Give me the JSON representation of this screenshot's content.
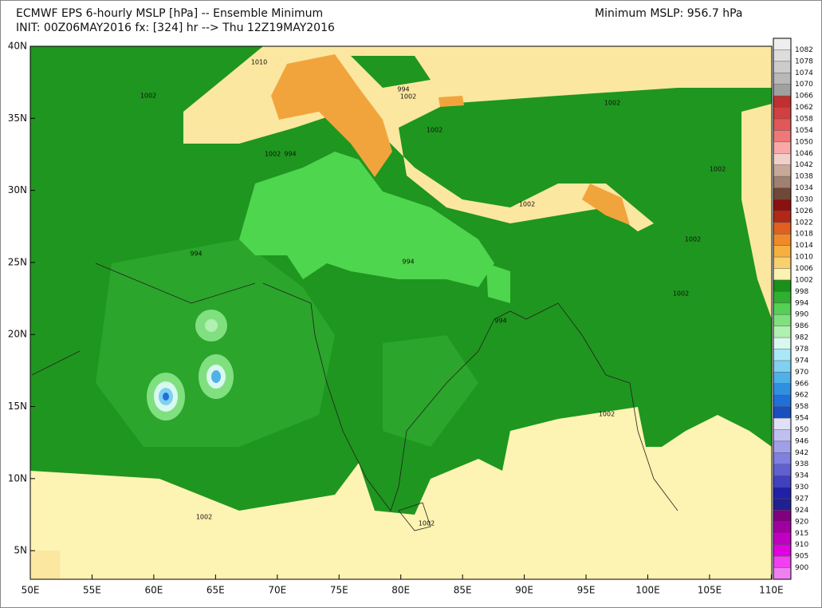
{
  "header": {
    "title": "ECMWF EPS 6-hourly MSLP [hPa] -- Ensemble Minimum",
    "subtitle": "INIT: 00Z06MAY2016 fx: [324] hr --> Thu 12Z19MAY2016",
    "summary": "Minimum MSLP: 956.7 hPa"
  },
  "map": {
    "lat_labels": [
      "40N",
      "35N",
      "30N",
      "25N",
      "20N",
      "15N",
      "10N",
      "5N"
    ],
    "lon_labels": [
      "50E",
      "55E",
      "60E",
      "65E",
      "70E",
      "75E",
      "80E",
      "85E",
      "90E",
      "95E",
      "100E",
      "105E",
      "110E"
    ],
    "contour_labels": [
      1010,
      1002,
      994,
      1002,
      1002,
      1002,
      1002,
      994,
      1002,
      1002,
      1002,
      994,
      994,
      1002,
      994,
      1002,
      1002,
      1002
    ]
  },
  "colorbar": {
    "levels": [
      1082,
      1078,
      1074,
      1070,
      1066,
      1062,
      1058,
      1054,
      1050,
      1046,
      1042,
      1038,
      1034,
      1030,
      1026,
      1022,
      1018,
      1014,
      1010,
      1006,
      1002,
      998,
      994,
      990,
      986,
      982,
      978,
      974,
      970,
      966,
      962,
      958,
      954,
      950,
      946,
      942,
      938,
      934,
      930,
      927,
      924,
      920,
      915,
      910,
      905,
      900
    ],
    "colors": [
      "#eeeeee",
      "#dddddd",
      "#cccccc",
      "#b8b8b8",
      "#a0a0a0",
      "#c03030",
      "#d04040",
      "#e05858",
      "#f07878",
      "#f8a8a8",
      "#f0d0c8",
      "#c8a898",
      "#a08070",
      "#704838",
      "#8b1010",
      "#b02818",
      "#e06020",
      "#f08a28",
      "#f5b040",
      "#f8d070",
      "#fdf2b0",
      "#1a8f1a",
      "#2fb02f",
      "#55d055",
      "#80e080",
      "#b0f0b0",
      "#d8f8f0",
      "#a8e8f8",
      "#80d0f0",
      "#50b0e8",
      "#3090e0",
      "#2070d8",
      "#1850c0",
      "#e0e0f8",
      "#c0c0f0",
      "#a0a0e8",
      "#8080e0",
      "#6060d0",
      "#4040c0",
      "#2020a8",
      "#202090",
      "#800080",
      "#a000a0",
      "#c000c0",
      "#e000e0",
      "#f040f0",
      "#f080f0"
    ]
  }
}
